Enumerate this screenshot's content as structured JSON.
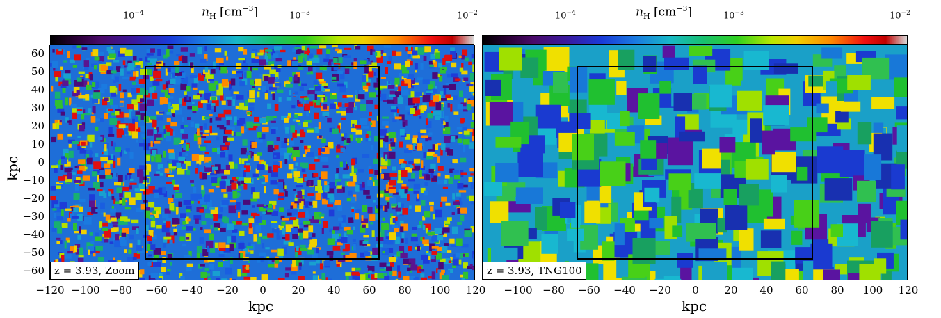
{
  "colorbar": {
    "label_prefix": "n",
    "label_sub": "H",
    "label_unit": "[cm",
    "label_exp": "−3",
    "label_close": "]",
    "ticks": [
      {
        "base": "10",
        "exp": "−4"
      },
      {
        "base": "10",
        "exp": "−3"
      },
      {
        "base": "10",
        "exp": "−2"
      }
    ]
  },
  "axes": {
    "ylabel": "kpc",
    "xlabel": "kpc",
    "yticks": [
      "60",
      "50",
      "40",
      "30",
      "20",
      "10",
      "0",
      "−10",
      "−20",
      "−30",
      "−40",
      "−50",
      "−60"
    ],
    "xticks_left": [
      "−120",
      "−100",
      "−80",
      "−60",
      "−40",
      "−20",
      "0",
      "20",
      "40",
      "60",
      "80",
      "100",
      "120"
    ],
    "xticks_right": [
      "−100",
      "−80",
      "−60",
      "−40",
      "−20",
      "0",
      "20",
      "40",
      "60",
      "80",
      "100",
      "120"
    ]
  },
  "panels": [
    {
      "caption": "z = 3.93,  Zoom"
    },
    {
      "caption": "z = 3.93,  TNG100"
    }
  ]
}
